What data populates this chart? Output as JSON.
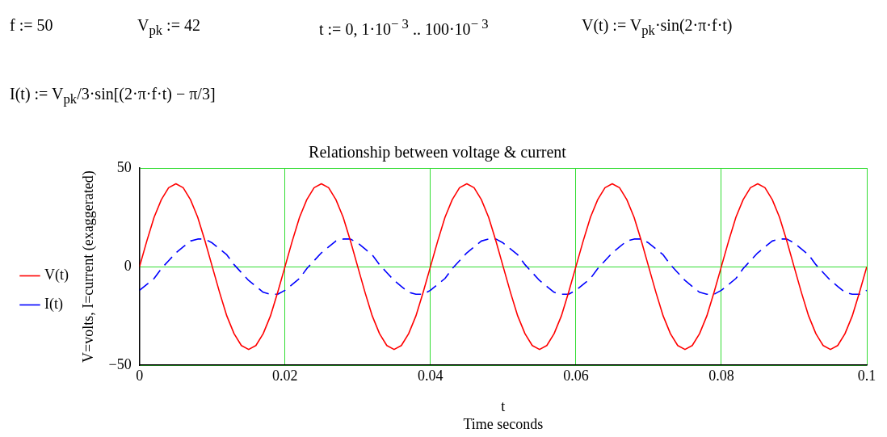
{
  "chart_data": {
    "type": "line",
    "title": "Relationship between voltage & current",
    "xlabel": "t\nTime seconds",
    "ylabel": "V=volts, I=current (exaggerated)",
    "annotations": [
      "f := 50",
      "V$_{pk}$ := 42",
      "t := 0, 1·10$^{− 3}$ .. 100·10$^{− 3}$",
      "V(t) := V$_{pk}$·sin(2·π·f·t)",
      "I(t) := V$_{pk}$/3·sin[(2·π·f·t) − π/3]"
    ],
    "x": [
      0,
      0.001,
      0.002,
      0.003,
      0.004,
      0.005,
      0.006,
      0.007,
      0.008,
      0.009,
      0.01,
      0.011,
      0.012,
      0.013,
      0.014,
      0.015,
      0.016,
      0.017,
      0.018,
      0.019,
      0.02,
      0.021,
      0.022,
      0.023,
      0.024,
      0.025,
      0.026,
      0.027,
      0.028,
      0.029,
      0.03,
      0.031,
      0.032,
      0.033,
      0.034,
      0.035,
      0.036,
      0.037,
      0.038,
      0.039,
      0.04,
      0.041,
      0.042,
      0.043,
      0.044,
      0.045,
      0.046,
      0.047,
      0.048,
      0.049,
      0.05,
      0.051,
      0.052,
      0.053,
      0.054,
      0.055,
      0.056,
      0.057,
      0.058,
      0.059,
      0.06,
      0.061,
      0.062,
      0.063,
      0.064,
      0.065,
      0.066,
      0.067,
      0.068,
      0.069,
      0.07,
      0.071,
      0.072,
      0.073,
      0.074,
      0.075,
      0.076,
      0.077,
      0.078,
      0.079,
      0.08,
      0.081,
      0.082,
      0.083,
      0.084,
      0.085,
      0.086,
      0.087,
      0.088,
      0.089,
      0.09,
      0.091,
      0.092,
      0.093,
      0.094,
      0.095,
      0.096,
      0.097,
      0.098,
      0.099,
      0.1
    ],
    "series": [
      {
        "name": "V(t)",
        "color": "#ff0000",
        "line_style": "solid",
        "values": [
          0,
          13,
          25,
          34,
          40,
          42,
          40,
          34,
          25,
          13,
          0,
          -13,
          -25,
          -34,
          -40,
          -42,
          -40,
          -34,
          -25,
          -13,
          0,
          13,
          25,
          34,
          40,
          42,
          40,
          34,
          25,
          13,
          0,
          -13,
          -25,
          -34,
          -40,
          -42,
          -40,
          -34,
          -25,
          -13,
          0,
          13,
          25,
          34,
          40,
          42,
          40,
          34,
          25,
          13,
          0,
          -13,
          -25,
          -34,
          -40,
          -42,
          -40,
          -34,
          -25,
          -13,
          0,
          13,
          25,
          34,
          40,
          42,
          40,
          34,
          25,
          13,
          0,
          -13,
          -25,
          -34,
          -40,
          -42,
          -40,
          -34,
          -25,
          -13,
          0,
          13,
          25,
          34,
          40,
          42,
          40,
          34,
          25,
          13,
          0,
          -13,
          -25,
          -34,
          -40,
          -42,
          -40,
          -34,
          -25,
          -13,
          0
        ]
      },
      {
        "name": "I(t)",
        "color": "#0000ff",
        "line_style": "dashed",
        "values": [
          -12,
          -9,
          -6,
          -1,
          3,
          7,
          10,
          13,
          14,
          14,
          12,
          9,
          6,
          1,
          -3,
          -7,
          -10,
          -13,
          -14,
          -14,
          -12,
          -9,
          -6,
          -1,
          3,
          7,
          10,
          13,
          14,
          14,
          12,
          9,
          6,
          1,
          -3,
          -7,
          -10,
          -13,
          -14,
          -14,
          -12,
          -9,
          -6,
          -1,
          3,
          7,
          10,
          13,
          14,
          14,
          12,
          9,
          6,
          1,
          -3,
          -7,
          -10,
          -13,
          -14,
          -14,
          -12,
          -9,
          -6,
          -1,
          3,
          7,
          10,
          13,
          14,
          14,
          12,
          9,
          6,
          1,
          -3,
          -7,
          -10,
          -13,
          -14,
          -14,
          -12,
          -9,
          -6,
          -1,
          3,
          7,
          10,
          13,
          14,
          14,
          12,
          9,
          6,
          1,
          -3,
          -7,
          -10,
          -13,
          -14,
          -14,
          -12
        ]
      }
    ],
    "xlim": [
      0,
      0.1
    ],
    "xticks": [
      0,
      0.02,
      0.04,
      0.06,
      0.08,
      0.1
    ],
    "ylim": [
      -50,
      50
    ],
    "yticks": [
      -50,
      0,
      50
    ],
    "grid": true,
    "legend": "left",
    "marker": "none"
  }
}
